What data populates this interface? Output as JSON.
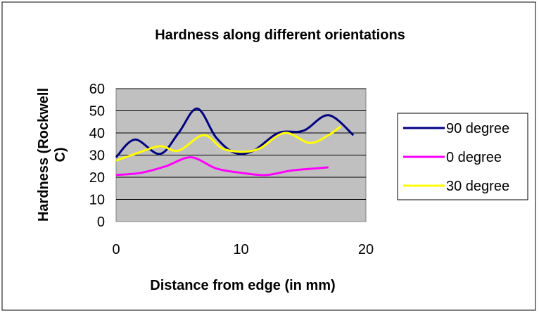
{
  "chart_data": {
    "type": "line",
    "title": "Hardness along different orientations",
    "xlabel": "Distance from edge (in mm)",
    "ylabel_lines": [
      "Hardness (Rockwell",
      "C)"
    ],
    "xlim": [
      0,
      20
    ],
    "ylim": [
      0,
      60
    ],
    "x_ticks": [
      0,
      10,
      20
    ],
    "y_ticks": [
      0,
      10,
      20,
      30,
      40,
      50,
      60
    ],
    "grid": "horizontal",
    "plot_background": "#c0c0c0",
    "legend_position": "right",
    "series": [
      {
        "name": "90 degree",
        "color": "#000080",
        "x": [
          0,
          1.5,
          3.5,
          5,
          6.5,
          8,
          9.5,
          11,
          13,
          15,
          17,
          19
        ],
        "y": [
          29,
          37,
          30.5,
          40,
          51,
          38,
          31,
          32,
          40,
          41,
          48,
          39
        ]
      },
      {
        "name": "0 degree",
        "color": "#ff00ff",
        "x": [
          0,
          2,
          4,
          6,
          8,
          10,
          12,
          14,
          16,
          17
        ],
        "y": [
          21,
          22,
          25,
          29,
          24,
          22,
          21,
          23,
          24,
          24.5
        ]
      },
      {
        "name": "30 degree",
        "color": "#ffff00",
        "x": [
          0,
          1.5,
          3.5,
          5,
          7,
          8.5,
          10,
          11.5,
          13.5,
          15.5,
          17,
          18
        ],
        "y": [
          27.5,
          30.5,
          34,
          32,
          39,
          33,
          31.5,
          33,
          40,
          35.5,
          39,
          43
        ]
      }
    ]
  }
}
